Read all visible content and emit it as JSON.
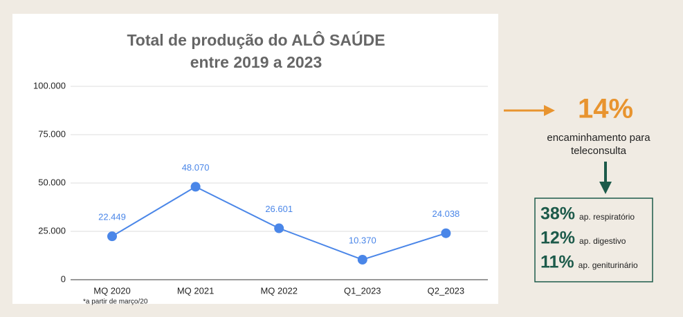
{
  "chart_data": {
    "type": "line",
    "title": [
      "Total de produção do ALÔ SAÚDE",
      "entre 2019 a 2023"
    ],
    "categories": [
      "MQ 2020",
      "MQ 2021",
      "MQ 2022",
      "Q1_2023",
      "Q2_2023"
    ],
    "values": [
      22449,
      48070,
      26601,
      10370,
      24038
    ],
    "value_labels": [
      "22.449",
      "48.070",
      "26.601",
      "10.370",
      "24.038"
    ],
    "color": "#4a86e8",
    "ylim": [
      0,
      100000
    ],
    "yticks": [
      0,
      {
        "value": 25000,
        "label": "25.000"
      },
      {
        "value": 50000,
        "label": "50.000"
      },
      {
        "value": 75000,
        "label": "75.000"
      },
      {
        "value": 100000,
        "label": "100.000"
      }
    ],
    "grid": true,
    "annotation": "*a partir de março/20"
  },
  "highlight": {
    "value": "14%",
    "label": [
      "encaminhamento para",
      "teleconsulta"
    ]
  },
  "breakdown": [
    {
      "percent": "38%",
      "label": "ap. respiratório"
    },
    {
      "percent": "12%",
      "label": "ap.  digestivo"
    },
    {
      "percent": "11%",
      "label": "ap. geniturinário"
    }
  ]
}
